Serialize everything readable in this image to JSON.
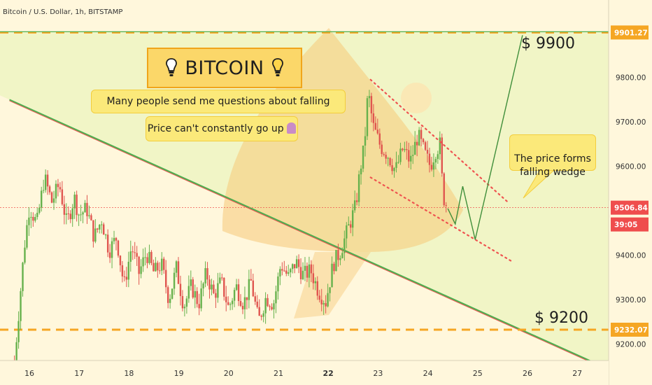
{
  "symbol_line": "Bitcoin / U.S. Dollar, 1h, BITSTAMP",
  "title_box": {
    "text": "BITCOIN"
  },
  "annotations": {
    "questions": "Many people send me questions about falling price!",
    "cant_go_up": "Price can't constantly go up",
    "wedge": "The price forms\nfalling wedge",
    "target_high": "$ 9900",
    "target_low": "$ 9200"
  },
  "price_axis": {
    "ticks": [
      "9800.00",
      "9700.00",
      "9600.00",
      "9400.00",
      "9300.00",
      "9200.00"
    ],
    "tag_resistance": "9901.27",
    "tag_current": "9506.84",
    "tag_countdown": "39:05",
    "tag_support": "9232.07"
  },
  "time_axis": {
    "ticks": [
      "16",
      "17",
      "18",
      "19",
      "20",
      "21",
      "22",
      "23",
      "24",
      "25",
      "26",
      "27"
    ]
  },
  "colors": {
    "background": "#fff7dc",
    "green_zone": "#f1f5c6",
    "candle_up": "#66b14c",
    "candle_down": "#e0554f",
    "dashed_levels": "#f5a623",
    "channel": "#ef5350",
    "trendline": "#4caf50",
    "rocket_watermark": "#f6c878"
  },
  "chart_data": {
    "type": "candlestick",
    "symbol": "Bitcoin / U.S. Dollar",
    "interval": "1h",
    "exchange": "BITSTAMP",
    "x_ticks": [
      "16",
      "17",
      "18",
      "19",
      "20",
      "21",
      "22",
      "23",
      "24",
      "25",
      "26",
      "27"
    ],
    "y_ticks": [
      9200,
      9300,
      9400,
      9600,
      9700,
      9800
    ],
    "ylim": [
      9150,
      10050
    ],
    "x_range_days": [
      15.6,
      27.6
    ],
    "levels": {
      "resistance": 9901.27,
      "support": 9232.07,
      "current": 9506.84
    },
    "price_path": [
      [
        15.7,
        9160
      ],
      [
        15.9,
        9420
      ],
      [
        16.0,
        9510
      ],
      [
        16.15,
        9470
      ],
      [
        16.3,
        9575
      ],
      [
        16.45,
        9520
      ],
      [
        16.6,
        9560
      ],
      [
        16.75,
        9470
      ],
      [
        16.9,
        9530
      ],
      [
        17.0,
        9490
      ],
      [
        17.15,
        9505
      ],
      [
        17.3,
        9440
      ],
      [
        17.45,
        9480
      ],
      [
        17.6,
        9410
      ],
      [
        17.75,
        9440
      ],
      [
        17.9,
        9330
      ],
      [
        18.05,
        9420
      ],
      [
        18.2,
        9360
      ],
      [
        18.35,
        9405
      ],
      [
        18.5,
        9360
      ],
      [
        18.65,
        9380
      ],
      [
        18.8,
        9300
      ],
      [
        18.95,
        9370
      ],
      [
        19.1,
        9285
      ],
      [
        19.25,
        9330
      ],
      [
        19.4,
        9290
      ],
      [
        19.55,
        9360
      ],
      [
        19.7,
        9310
      ],
      [
        19.85,
        9340
      ],
      [
        20.0,
        9280
      ],
      [
        20.15,
        9330
      ],
      [
        20.3,
        9290
      ],
      [
        20.45,
        9340
      ],
      [
        20.6,
        9250
      ],
      [
        20.75,
        9305
      ],
      [
        20.9,
        9290
      ],
      [
        21.05,
        9380
      ],
      [
        21.2,
        9350
      ],
      [
        21.35,
        9385
      ],
      [
        21.5,
        9355
      ],
      [
        21.65,
        9365
      ],
      [
        21.8,
        9320
      ],
      [
        21.95,
        9295
      ],
      [
        22.1,
        9380
      ],
      [
        22.25,
        9410
      ],
      [
        22.4,
        9460
      ],
      [
        22.55,
        9510
      ],
      [
        22.65,
        9600
      ],
      [
        22.72,
        9640
      ],
      [
        22.8,
        9770
      ],
      [
        22.9,
        9690
      ],
      [
        23.05,
        9645
      ],
      [
        23.2,
        9625
      ],
      [
        23.35,
        9590
      ],
      [
        23.5,
        9640
      ],
      [
        23.65,
        9610
      ],
      [
        23.8,
        9670
      ],
      [
        23.95,
        9625
      ],
      [
        24.05,
        9600
      ],
      [
        24.15,
        9635
      ],
      [
        24.25,
        9650
      ],
      [
        24.3,
        9535
      ],
      [
        24.4,
        9505
      ]
    ],
    "projection": [
      [
        24.4,
        9505
      ],
      [
        24.55,
        9470
      ],
      [
        24.7,
        9555
      ],
      [
        24.95,
        9435
      ],
      [
        25.9,
        9895
      ]
    ],
    "falling_channel": {
      "upper": [
        [
          22.85,
          9795
        ],
        [
          25.6,
          9520
        ]
      ],
      "lower": [
        [
          22.85,
          9575
        ],
        [
          25.7,
          9385
        ]
      ]
    },
    "trendline": [
      [
        15.6,
        9750
      ],
      [
        27.3,
        9160
      ]
    ]
  }
}
